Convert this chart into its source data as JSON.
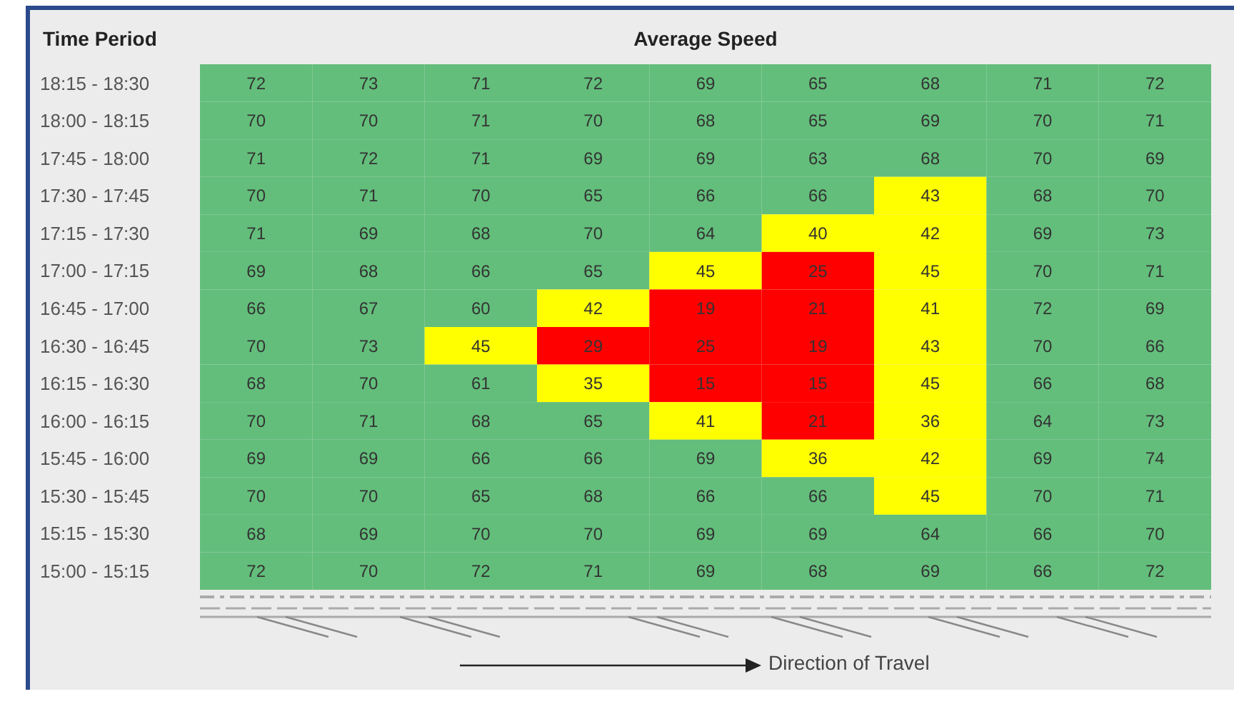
{
  "chart_data": {
    "type": "heatmap",
    "title": "Average Speed",
    "ylabel": "Time Period",
    "categories": [
      null,
      null,
      null,
      null,
      null,
      null,
      null,
      null,
      null
    ],
    "y_categories": [
      "18:15 - 18:30",
      "18:00 - 18:15",
      "17:45 - 18:00",
      "17:30 - 17:45",
      "17:15 - 17:30",
      "17:00 - 17:15",
      "16:45 - 17:00",
      "16:30 - 16:45",
      "16:15 - 16:30",
      "16:00 - 16:15",
      "15:45 - 16:00",
      "15:30 - 15:45",
      "15:15 - 15:30",
      "15:00 - 15:15"
    ],
    "cells": [
      [
        72,
        73,
        71,
        72,
        69,
        65,
        68,
        71,
        72
      ],
      [
        70,
        70,
        71,
        70,
        68,
        65,
        69,
        70,
        71
      ],
      [
        71,
        72,
        71,
        69,
        69,
        63,
        68,
        70,
        69
      ],
      [
        70,
        71,
        70,
        65,
        66,
        66,
        43,
        68,
        70
      ],
      [
        71,
        69,
        68,
        70,
        64,
        40,
        42,
        69,
        73
      ],
      [
        69,
        68,
        66,
        65,
        45,
        25,
        45,
        70,
        71
      ],
      [
        66,
        67,
        60,
        42,
        19,
        21,
        41,
        72,
        69
      ],
      [
        70,
        73,
        45,
        29,
        25,
        19,
        43,
        70,
        66
      ],
      [
        68,
        70,
        61,
        35,
        15,
        15,
        45,
        66,
        68
      ],
      [
        70,
        71,
        68,
        65,
        41,
        21,
        36,
        64,
        73
      ],
      [
        69,
        69,
        66,
        66,
        69,
        36,
        42,
        69,
        74
      ],
      [
        70,
        70,
        65,
        68,
        66,
        66,
        45,
        70,
        71
      ],
      [
        68,
        69,
        70,
        70,
        69,
        69,
        64,
        66,
        70
      ],
      [
        72,
        70,
        72,
        71,
        69,
        68,
        69,
        66,
        72
      ]
    ],
    "colors": [
      [
        "#63be7b",
        "#63be7b",
        "#63be7b",
        "#63be7b",
        "#63be7b",
        "#63be7b",
        "#63be7b",
        "#63be7b",
        "#63be7b"
      ],
      [
        "#63be7b",
        "#63be7b",
        "#63be7b",
        "#63be7b",
        "#63be7b",
        "#63be7b",
        "#63be7b",
        "#63be7b",
        "#63be7b"
      ],
      [
        "#63be7b",
        "#63be7b",
        "#63be7b",
        "#63be7b",
        "#63be7b",
        "#63be7b",
        "#63be7b",
        "#63be7b",
        "#63be7b"
      ],
      [
        "#63be7b",
        "#63be7b",
        "#63be7b",
        "#63be7b",
        "#63be7b",
        "#63be7b",
        "#ffff00",
        "#63be7b",
        "#63be7b"
      ],
      [
        "#63be7b",
        "#63be7b",
        "#63be7b",
        "#63be7b",
        "#63be7b",
        "#ffff00",
        "#ffff00",
        "#63be7b",
        "#63be7b"
      ],
      [
        "#63be7b",
        "#63be7b",
        "#63be7b",
        "#63be7b",
        "#ffff00",
        "#ff0000",
        "#ffff00",
        "#63be7b",
        "#63be7b"
      ],
      [
        "#63be7b",
        "#63be7b",
        "#63be7b",
        "#ffff00",
        "#ff0000",
        "#ff0000",
        "#ffff00",
        "#63be7b",
        "#63be7b"
      ],
      [
        "#63be7b",
        "#63be7b",
        "#ffff00",
        "#ff0000",
        "#ff0000",
        "#ff0000",
        "#ffff00",
        "#63be7b",
        "#63be7b"
      ],
      [
        "#63be7b",
        "#63be7b",
        "#63be7b",
        "#ffff00",
        "#ff0000",
        "#ff0000",
        "#ffff00",
        "#63be7b",
        "#63be7b"
      ],
      [
        "#63be7b",
        "#63be7b",
        "#63be7b",
        "#63be7b",
        "#ffff00",
        "#ff0000",
        "#ffff00",
        "#63be7b",
        "#63be7b"
      ],
      [
        "#63be7b",
        "#63be7b",
        "#63be7b",
        "#63be7b",
        "#63be7b",
        "#ffff00",
        "#ffff00",
        "#63be7b",
        "#63be7b"
      ],
      [
        "#63be7b",
        "#63be7b",
        "#63be7b",
        "#63be7b",
        "#63be7b",
        "#63be7b",
        "#ffff00",
        "#63be7b",
        "#63be7b"
      ],
      [
        "#63be7b",
        "#63be7b",
        "#63be7b",
        "#63be7b",
        "#63be7b",
        "#63be7b",
        "#63be7b",
        "#63be7b",
        "#63be7b"
      ],
      [
        "#63be7b",
        "#63be7b",
        "#63be7b",
        "#63be7b",
        "#63be7b",
        "#63be7b",
        "#63be7b",
        "#63be7b",
        "#63be7b"
      ]
    ],
    "data_labels": true,
    "annotations": [
      "Direction of Travel"
    ]
  }
}
